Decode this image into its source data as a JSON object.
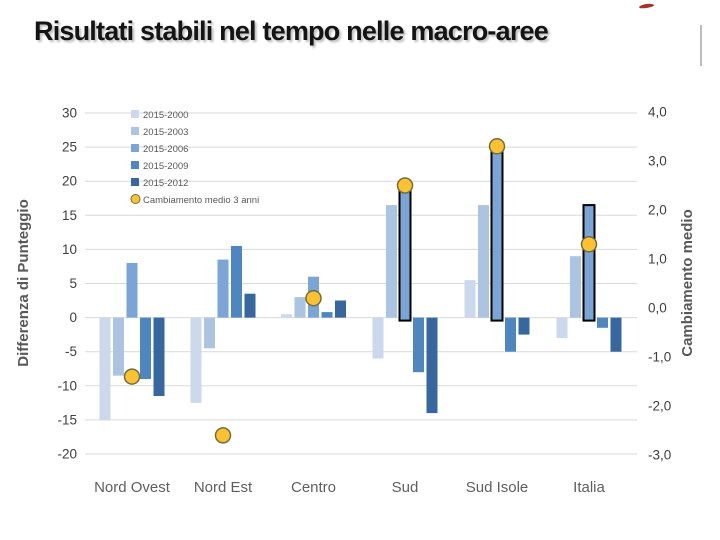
{
  "slide": {
    "title": "Risultati stabili nel tempo nelle macro-aree"
  },
  "chart_data": {
    "type": "bar",
    "title": "Risultati stabili nel tempo nelle macro-aree",
    "categories": [
      "Nord Ovest",
      "Nord Est",
      "Centro",
      "Sud",
      "Sud Isole",
      "Italia"
    ],
    "series": [
      {
        "name": "2015-2000",
        "color": "#ccd9ec",
        "values": [
          -15,
          -12.5,
          0.5,
          -6,
          5.5,
          -3
        ]
      },
      {
        "name": "2015-2003",
        "color": "#aac4e1",
        "values": [
          -8.5,
          -4.5,
          3,
          16.5,
          16.5,
          9
        ]
      },
      {
        "name": "2015-2006",
        "color": "#7aa5d6",
        "values": [
          8,
          8.5,
          6,
          18.5,
          25,
          16.5
        ]
      },
      {
        "name": "2015-2009",
        "color": "#4e86c0",
        "values": [
          -9,
          10.5,
          0.8,
          -8,
          -5,
          -1.5
        ]
      },
      {
        "name": "2015-2012",
        "color": "#36679e",
        "values": [
          -11.5,
          3.5,
          2.5,
          -14,
          -2.5,
          -5
        ]
      }
    ],
    "dot_series": {
      "name": "Cambiamento medio 3 anni",
      "axis": "right",
      "fill": "#fdc232",
      "border": "#6f6f3e",
      "values": [
        -1.4,
        -2.6,
        0.2,
        2.5,
        3.3,
        1.3
      ]
    },
    "highlighted": {
      "series": "2015-2006",
      "categories": [
        "Sud",
        "Sud Isole",
        "Italia"
      ]
    },
    "left_axis": {
      "title": "Differenza di Punteggio",
      "min": -20,
      "max": 30,
      "tick_values": [
        30,
        25,
        20,
        15,
        10,
        5,
        0,
        -5,
        -10,
        -15,
        -20
      ],
      "tick_labels": [
        "30",
        "25",
        "20",
        "15",
        "10",
        "5",
        "0",
        "-5",
        "-10",
        "-15",
        "-20"
      ]
    },
    "right_axis": {
      "title": "Cambiamento medio",
      "min": -3,
      "max": 4,
      "tick_values": [
        4,
        3,
        2,
        1,
        0,
        -1,
        -2,
        -3
      ],
      "tick_labels": [
        "4,0",
        "3,0",
        "2,0",
        "1,0",
        "0,0",
        "-1,0",
        "-2,0",
        "-3,0"
      ]
    },
    "legend_position": "top-left-inside",
    "grid": true,
    "theme": {
      "gridline_color": "#d9d9d9",
      "tick_text_color": "#404040",
      "axis_title_color": "#595959",
      "category_text_color": "#5f5f5f",
      "legend_text_color": "#595959"
    }
  }
}
